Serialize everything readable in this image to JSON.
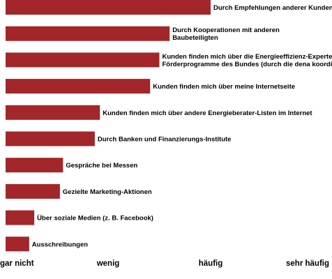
{
  "chart_data": {
    "type": "bar",
    "orientation": "horizontal",
    "title": "",
    "xlabel": "",
    "ylabel": "",
    "bar_color": "#a3262a",
    "xlim": [
      0,
      3
    ],
    "x_ticks": [
      {
        "value": 0,
        "label": "gar nicht"
      },
      {
        "value": 1,
        "label": "wenig"
      },
      {
        "value": 2,
        "label": "häufig"
      },
      {
        "value": 3,
        "label": "sehr häufig"
      }
    ],
    "grid": false,
    "legend": "none",
    "categories": [
      [
        "Durch Empfehlungen anderer Kunden"
      ],
      [
        "Durch Kooperationen mit anderen",
        "Baubeteiligten"
      ],
      [
        "Kunden finden mich über die Energieeffizienz-Expertenliste für",
        "Förderprogramme des Bundes (durch die dena koordiniert)"
      ],
      [
        "Kunden finden mich über meine Internetseite"
      ],
      [
        "Kunden finden mich über andere Energieberater-Listen im Internet"
      ],
      [
        "Durch Banken und Finanzierungs-Institute"
      ],
      [
        "Gespräche bei Messen"
      ],
      [
        "Gezielte Marketing-Aktionen"
      ],
      [
        "Über soziale Medien (z. B. Facebook)"
      ],
      [
        "Ausschreibungen"
      ]
    ],
    "values": [
      2.0,
      1.6,
      1.5,
      1.41,
      0.92,
      0.87,
      0.56,
      0.53,
      0.28,
      0.23
    ]
  }
}
